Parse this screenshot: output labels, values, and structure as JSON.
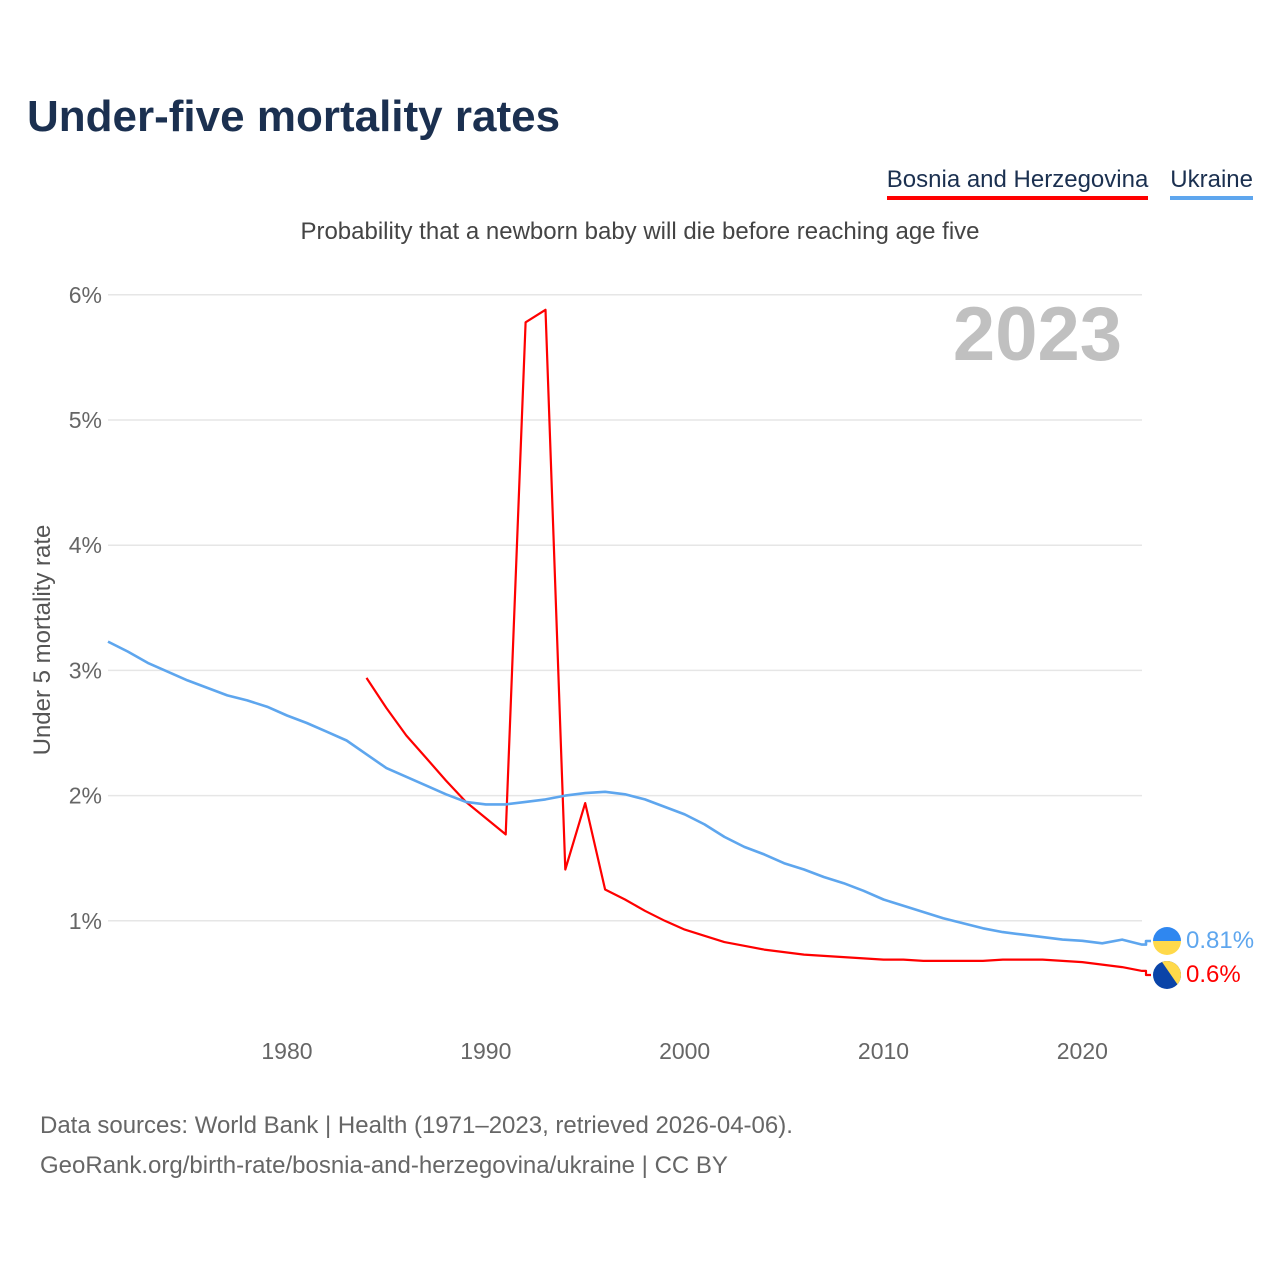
{
  "title": "Under-five mortality rates",
  "subtitle": "Probability that a newborn baby will die before reaching age five",
  "footer": {
    "line1": "Data sources: World Bank | Health (1971–2023, retrieved 2026-04-06).",
    "line2": "GeoRank.org/birth-rate/bosnia-and-herzegovina/ukraine | CC BY"
  },
  "chart_data": {
    "type": "line",
    "title": "Under-five mortality rates",
    "ylabel": "Under 5 mortality rate",
    "xlabel": "",
    "year_label": "2023",
    "ylim": [
      0,
      6
    ],
    "xlim": [
      1971,
      2023
    ],
    "yticks": [
      1,
      2,
      3,
      4,
      5,
      6
    ],
    "ytick_labels": [
      "1%",
      "2%",
      "3%",
      "4%",
      "5%",
      "6%"
    ],
    "xticks": [
      1980,
      1990,
      2000,
      2010,
      2020
    ],
    "xtick_labels": [
      "1980",
      "1990",
      "2000",
      "2010",
      "2020"
    ],
    "grid": true,
    "legend_position": "top-right",
    "series": [
      {
        "name": "Bosnia and Herzegovina",
        "color": "#ff0000",
        "end_label": "0.6%",
        "start_year": 1984,
        "values": [
          2.94,
          2.7,
          2.48,
          2.3,
          2.12,
          1.95,
          1.82,
          1.69,
          5.78,
          5.88,
          1.41,
          1.94,
          1.25,
          1.17,
          1.08,
          1.0,
          0.93,
          0.88,
          0.83,
          0.8,
          0.77,
          0.75,
          0.73,
          0.72,
          0.71,
          0.7,
          0.69,
          0.69,
          0.68,
          0.68,
          0.68,
          0.68,
          0.69,
          0.69,
          0.69,
          0.68,
          0.67,
          0.65,
          0.63,
          0.6
        ]
      },
      {
        "name": "Ukraine",
        "color": "#5ea6ee",
        "end_label": "0.81%",
        "start_year": 1971,
        "values": [
          3.23,
          3.15,
          3.06,
          2.99,
          2.92,
          2.86,
          2.8,
          2.76,
          2.71,
          2.64,
          2.58,
          2.51,
          2.44,
          2.33,
          2.22,
          2.15,
          2.08,
          2.01,
          1.95,
          1.93,
          1.93,
          1.95,
          1.97,
          2.0,
          2.02,
          2.03,
          2.01,
          1.97,
          1.91,
          1.85,
          1.77,
          1.67,
          1.59,
          1.53,
          1.46,
          1.41,
          1.35,
          1.3,
          1.24,
          1.17,
          1.12,
          1.07,
          1.02,
          0.98,
          0.94,
          0.91,
          0.89,
          0.87,
          0.85,
          0.84,
          0.82,
          0.85,
          0.81
        ]
      }
    ]
  }
}
